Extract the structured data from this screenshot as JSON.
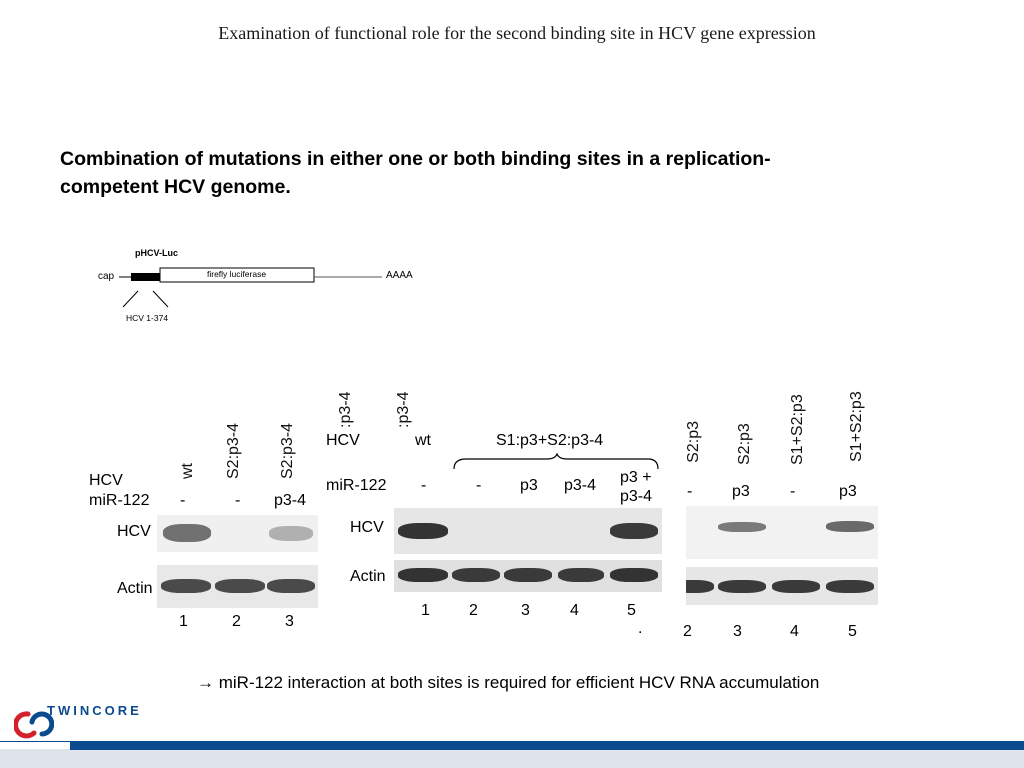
{
  "slide": {
    "title": "Examination of functional role for the second binding site in HCV gene expression",
    "heading": "Combination of mutations in either one or both binding sites in a replication-competent HCV genome.",
    "conclusion": "→ miR-122 interaction at both sites is required for efficient HCV RNA accumulation"
  },
  "diagram": {
    "construct_label": "pHCV-Luc",
    "cap_label": "cap",
    "box_label": "firefly luciferase",
    "tail_label": "AAAA",
    "region_label": "HCV 1-374"
  },
  "panel1": {
    "row_hcv": "HCV",
    "row_mir": "miR-122",
    "columns": [
      "wt",
      "S2:p3-4",
      "S2:p3-4"
    ],
    "mir_values": [
      "-",
      "-",
      "p3-4"
    ],
    "band_hcv": "HCV",
    "band_actin": "Actin",
    "lanes": [
      "1",
      "2",
      "3"
    ]
  },
  "panel2": {
    "top_cut_labels": [
      ":p3-4",
      ":p3-4"
    ],
    "row_hcv": "HCV",
    "wt": "wt",
    "group": "S1:p3+S2:p3-4",
    "row_mir": "miR-122",
    "mir_values": [
      "-",
      "-",
      "p3",
      "p3-4",
      "p3 +",
      "p3-4"
    ],
    "band_hcv": "HCV",
    "band_actin": "Actin",
    "lanes": [
      "1",
      "2",
      "3",
      "4",
      "5"
    ],
    "dot": "."
  },
  "panel3": {
    "columns": [
      "S2:p3",
      "S2:p3",
      "S1+S2:p3",
      "S1+S2:p3"
    ],
    "mir_values": [
      "-",
      "p3",
      "-",
      "p3"
    ],
    "lanes": [
      "2",
      "3",
      "4",
      "5"
    ]
  },
  "logo": {
    "text": "TWINCORE"
  },
  "colors": {
    "brand_blue": "#0a4a8f",
    "brand_red": "#d4202a",
    "footer_gray": "#dfe3ec"
  }
}
